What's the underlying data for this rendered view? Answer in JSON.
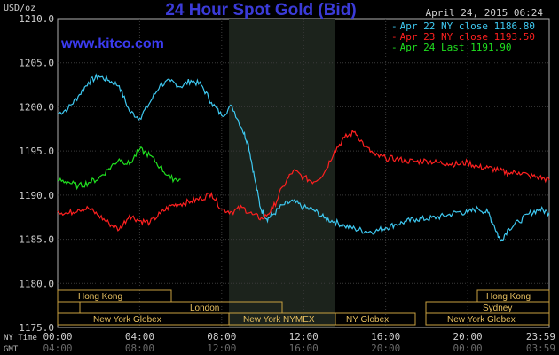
{
  "chart_data": {
    "type": "line",
    "title": "24 Hour Spot Gold (Bid)",
    "website": "www.kitco.com",
    "date_label": "April 24, 2015 06:24",
    "unit_label": "USD/oz",
    "ylim": [
      1175,
      1210
    ],
    "y_ticks": [
      "1210.0",
      "1205.0",
      "1200.0",
      "1195.0",
      "1190.0",
      "1185.0",
      "1180.0",
      "1175.0"
    ],
    "x_rows": {
      "ny_label": "NY Time",
      "gmt_label": "GMT",
      "ny_ticks": [
        "00:00",
        "04:00",
        "08:00",
        "12:00",
        "16:00",
        "20:00",
        "23:59"
      ],
      "gmt_ticks": [
        "04:00",
        "08:00",
        "12:00",
        "16:00",
        "20:00",
        "00:00",
        "03:59"
      ]
    },
    "legend": [
      {
        "label": "Apr 22 NY close 1186.80",
        "color": "#3ec8f0"
      },
      {
        "label": "Apr 23 NY close 1193.50",
        "color": "#ff2020"
      },
      {
        "label": "Apr 24 Last 1191.90",
        "color": "#20e020"
      }
    ],
    "series": [
      {
        "name": "Apr 22",
        "color": "#3ec8f0",
        "x": [
          0,
          0.5,
          1,
          1.5,
          2,
          2.5,
          3,
          3.5,
          4,
          4.5,
          5,
          5.5,
          6,
          6.5,
          7,
          7.5,
          8,
          8.5,
          9,
          9.3,
          9.6,
          9.9,
          10.2,
          10.5,
          11,
          11.5,
          12,
          12.5,
          13,
          13.5,
          14,
          14.5,
          15,
          15.5,
          16,
          16.5,
          17,
          17.5,
          18,
          18.5,
          19,
          19.5,
          20,
          20.5,
          21,
          21.3,
          21.6,
          22,
          22.5,
          23,
          23.5,
          23.98
        ],
        "y": [
          1199.2,
          1199.8,
          1201.2,
          1202.8,
          1203.5,
          1203.0,
          1202.4,
          1199.5,
          1198.7,
          1200.5,
          1202.5,
          1202.9,
          1202.3,
          1203.0,
          1202.5,
          1200.5,
          1199.0,
          1200.1,
          1197.5,
          1195.8,
          1192.0,
          1188.5,
          1187.3,
          1187.8,
          1188.9,
          1189.3,
          1188.6,
          1188.3,
          1187.4,
          1187.0,
          1186.5,
          1186.2,
          1185.9,
          1185.9,
          1186.3,
          1186.7,
          1187.0,
          1187.3,
          1187.3,
          1187.5,
          1187.7,
          1188.1,
          1188.0,
          1188.5,
          1188.0,
          1186.5,
          1184.8,
          1186.2,
          1187.0,
          1187.9,
          1188.4,
          1188.0
        ]
      },
      {
        "name": "Apr 23",
        "color": "#ff2020",
        "x": [
          0,
          0.5,
          1,
          1.5,
          2,
          2.5,
          3,
          3.5,
          4,
          4.5,
          5,
          5.5,
          6,
          6.5,
          7,
          7.5,
          8,
          8.5,
          9,
          9.5,
          10,
          10.5,
          11,
          11.5,
          12,
          12.5,
          13,
          13.5,
          14,
          14.5,
          15,
          15.5,
          16,
          16.5,
          17,
          17.5,
          18,
          18.5,
          19,
          19.5,
          20,
          20.5,
          21,
          21.5,
          22,
          22.5,
          23,
          23.5,
          23.98
        ],
        "y": [
          1188.2,
          1187.9,
          1188.4,
          1188.5,
          1187.7,
          1186.8,
          1186.1,
          1187.7,
          1187.1,
          1186.9,
          1187.9,
          1188.8,
          1189.0,
          1189.3,
          1189.6,
          1190.2,
          1188.4,
          1188.1,
          1188.6,
          1187.8,
          1187.3,
          1188.5,
          1191.0,
          1192.8,
          1192.0,
          1191.5,
          1192.5,
          1195.0,
          1196.5,
          1197.2,
          1195.5,
          1194.5,
          1194.2,
          1194.1,
          1193.9,
          1193.8,
          1193.9,
          1193.7,
          1193.6,
          1193.5,
          1193.7,
          1193.2,
          1193.1,
          1192.8,
          1192.5,
          1192.6,
          1192.2,
          1192.0,
          1191.7
        ]
      },
      {
        "name": "Apr 24",
        "color": "#20e020",
        "x": [
          0,
          0.5,
          1,
          1.5,
          2,
          2.5,
          3,
          3.5,
          4,
          4.5,
          5,
          5.5,
          6
        ],
        "y": [
          1191.7,
          1191.5,
          1191.0,
          1191.4,
          1191.9,
          1193.0,
          1194.1,
          1193.5,
          1195.2,
          1194.5,
          1193.2,
          1191.9,
          1191.8
        ]
      }
    ],
    "sessions": {
      "hong_kong": "Hong Kong",
      "london": "London",
      "ny_globex": "New York Globex",
      "ny_nymex": "New York NYMEX",
      "ny_globex_short": "NY Globex",
      "sydney": "Sydney"
    },
    "grid": true
  }
}
